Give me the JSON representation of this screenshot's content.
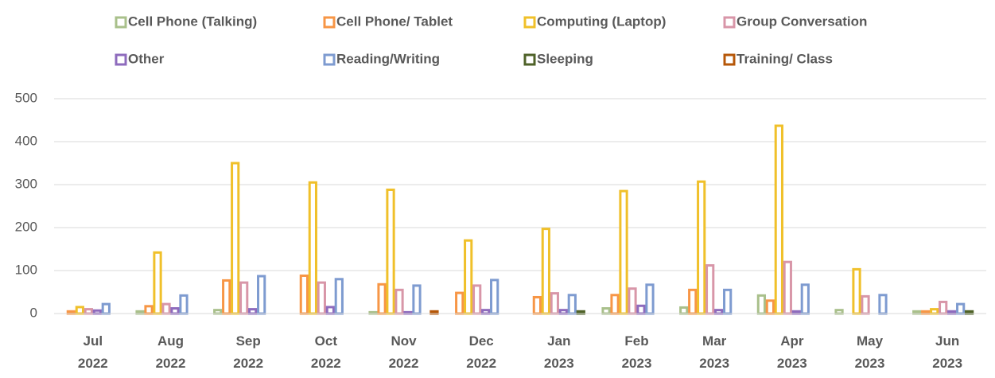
{
  "chart_data": {
    "type": "bar",
    "legend": "top",
    "grid": true,
    "categories": [
      "Jul 2022",
      "Aug 2022",
      "Sep 2022",
      "Oct 2022",
      "Nov 2022",
      "Dec 2022",
      "Jan 2023",
      "Feb 2023",
      "Mar 2023",
      "Apr 2023",
      "May 2023",
      "Jun 2023"
    ],
    "ylim": [
      0,
      500
    ],
    "yticks": [
      0,
      100,
      200,
      300,
      400,
      500
    ],
    "series": [
      {
        "name": "Cell Phone (Talking)",
        "color": "#a9c08b",
        "values": [
          0,
          5,
          8,
          0,
          3,
          0,
          0,
          12,
          14,
          42,
          8,
          5
        ]
      },
      {
        "name": "Cell Phone/ Tablet",
        "color": "#f79646",
        "values": [
          5,
          17,
          77,
          88,
          68,
          48,
          38,
          43,
          55,
          30,
          0,
          5
        ]
      },
      {
        "name": "Computing (Laptop)",
        "color": "#f0c02a",
        "values": [
          15,
          142,
          350,
          305,
          288,
          170,
          197,
          285,
          307,
          437,
          103,
          10
        ]
      },
      {
        "name": "Group Conversation",
        "color": "#d896a8",
        "values": [
          10,
          22,
          72,
          72,
          55,
          65,
          47,
          58,
          112,
          120,
          40,
          27
        ]
      },
      {
        "name": "Other",
        "color": "#8e6bbd",
        "values": [
          7,
          12,
          10,
          15,
          3,
          8,
          8,
          18,
          8,
          5,
          0,
          5
        ]
      },
      {
        "name": "Reading/Writing",
        "color": "#7e9bd0",
        "values": [
          22,
          42,
          87,
          80,
          65,
          78,
          43,
          67,
          55,
          67,
          43,
          22
        ]
      },
      {
        "name": "Sleeping",
        "color": "#4f6228",
        "values": [
          0,
          0,
          0,
          0,
          0,
          0,
          5,
          0,
          0,
          0,
          0,
          5
        ]
      },
      {
        "name": "Training/ Class",
        "color": "#b65708",
        "values": [
          0,
          0,
          0,
          0,
          5,
          0,
          0,
          0,
          0,
          0,
          0,
          0
        ]
      }
    ]
  }
}
